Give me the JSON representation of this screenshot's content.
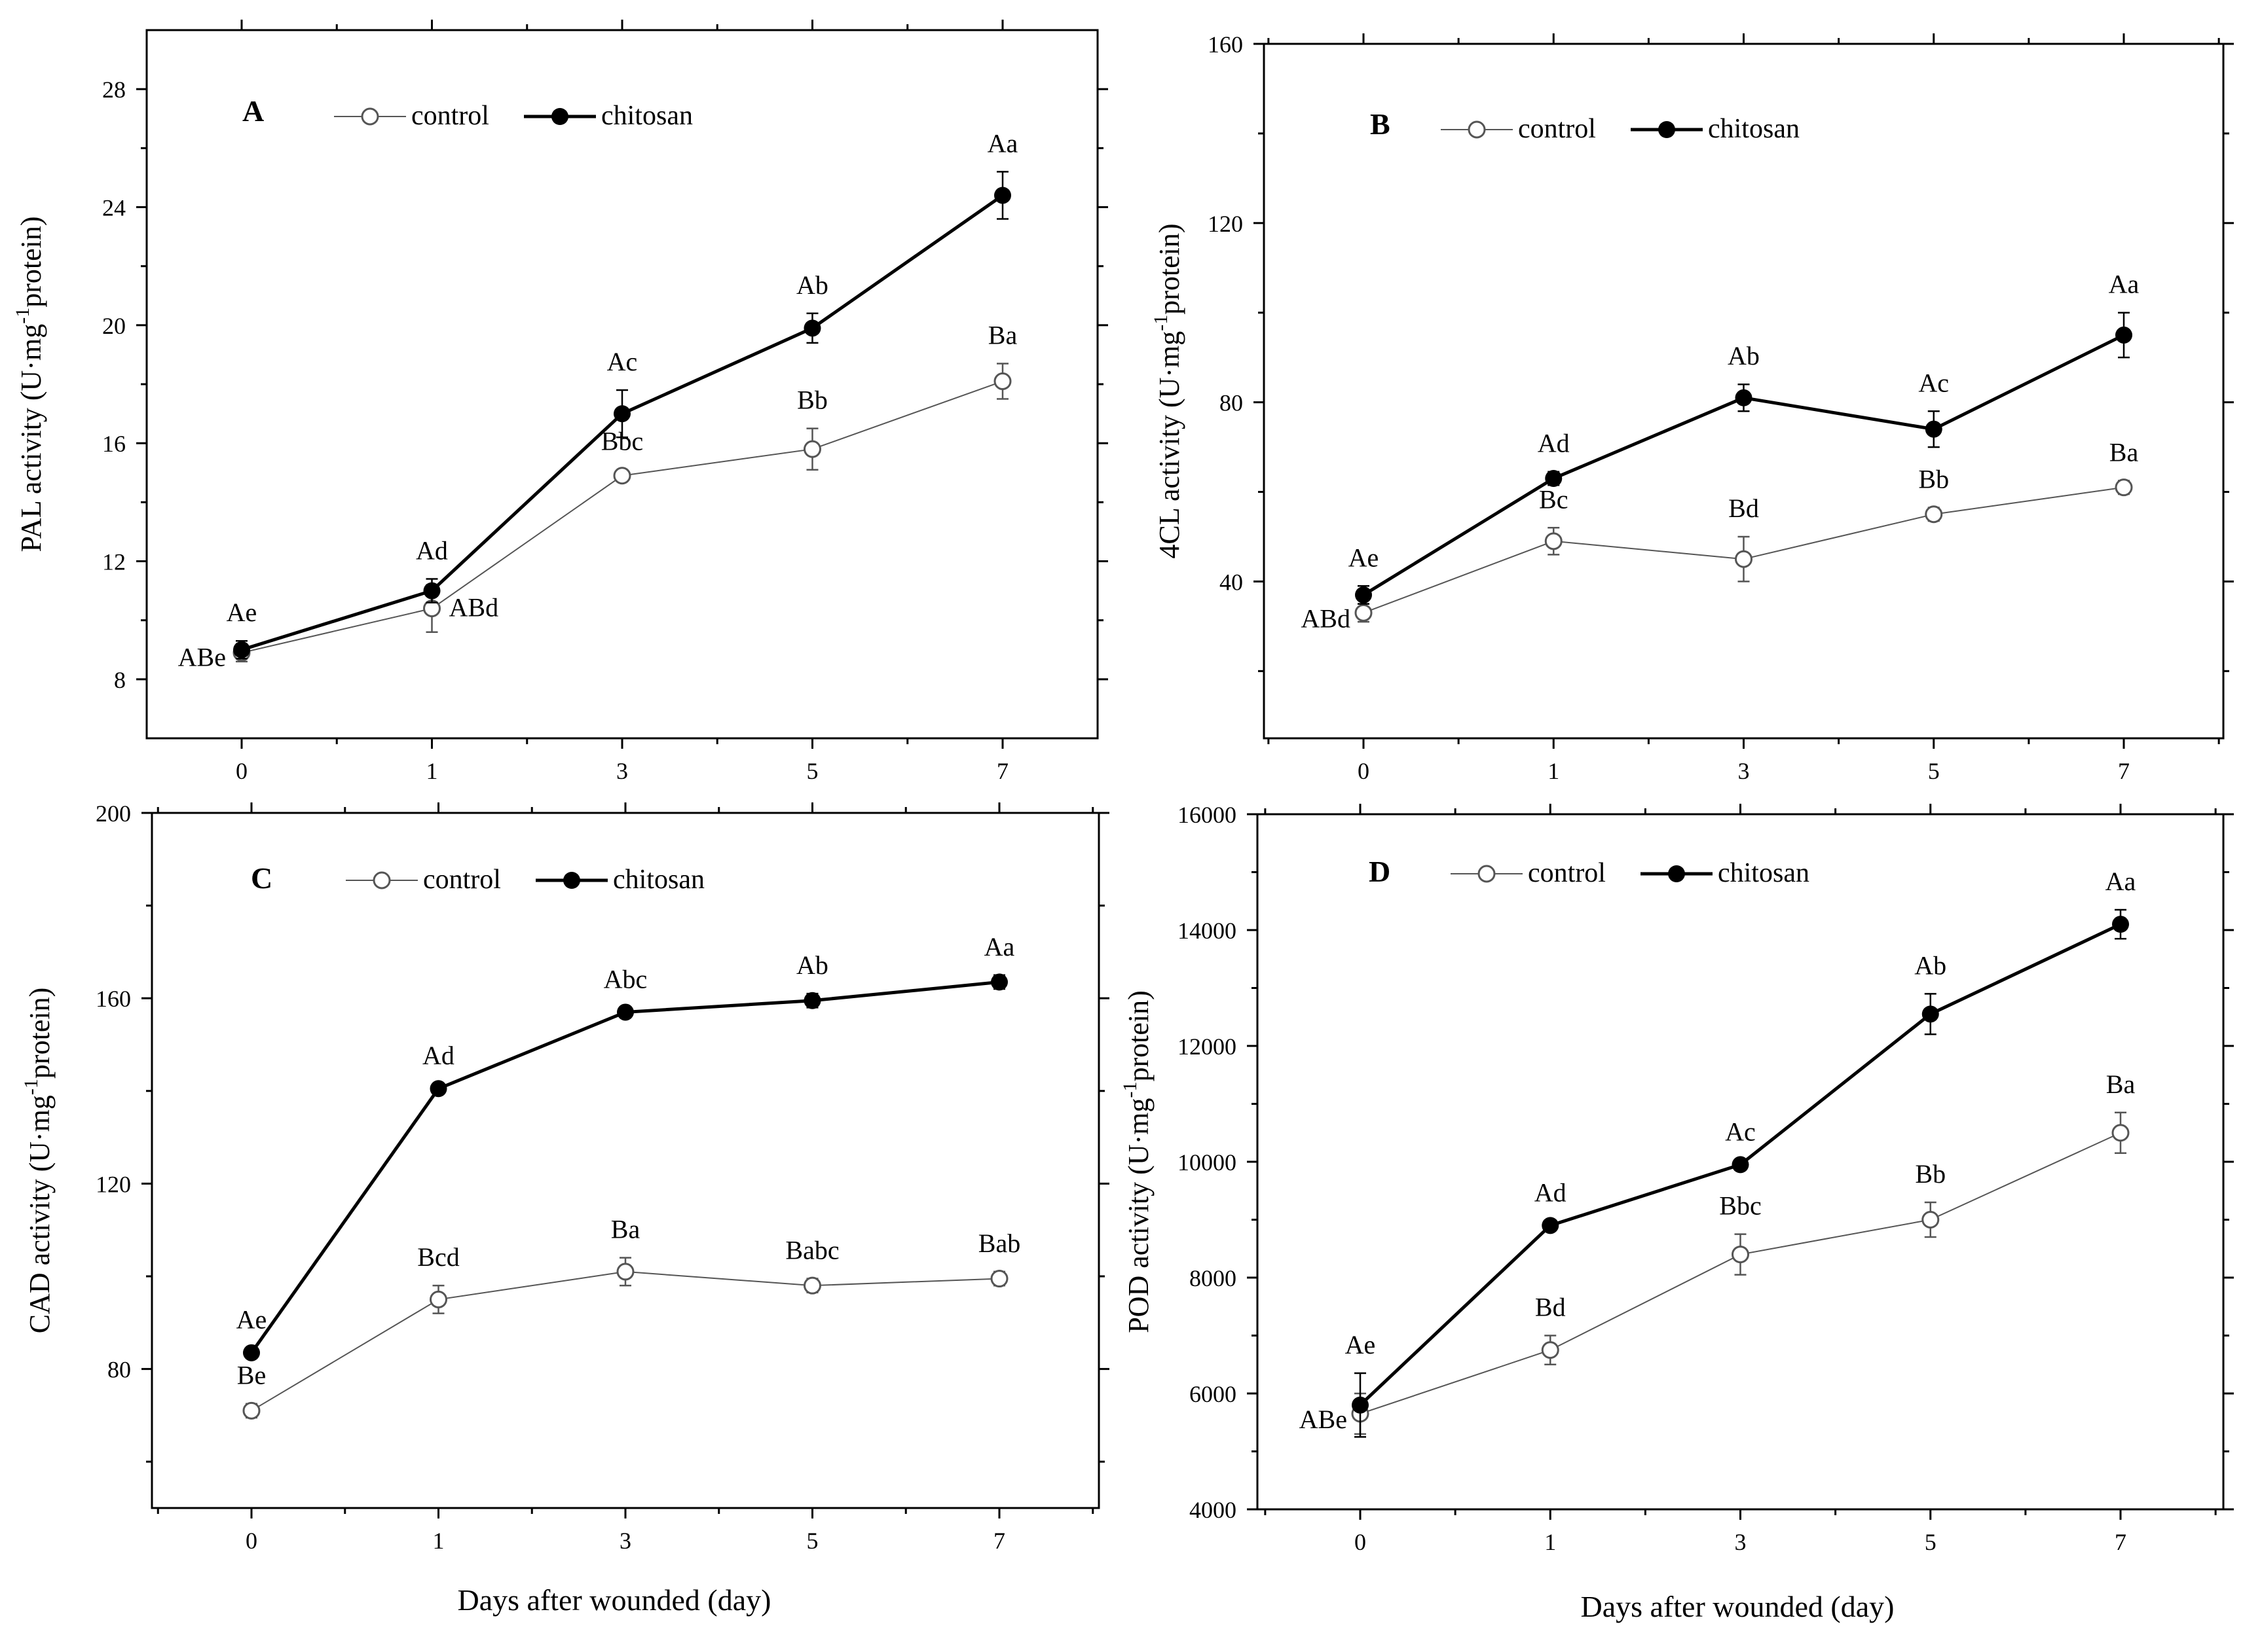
{
  "figure": {
    "shared_xlabel": "Days after wounded (day)"
  },
  "colors": {
    "axis": "#000000",
    "control": "#555555",
    "chitosan": "#000000"
  },
  "chart_data": [
    {
      "id": "A",
      "type": "line",
      "panel_label": "A",
      "title": "",
      "xlabel": "",
      "ylabel_prefix": "PAL activity (U·mg",
      "ylabel_sup": "-1",
      "ylabel_suffix": "protein)",
      "x": [
        "0",
        "1",
        "3",
        "5",
        "7"
      ],
      "ylim": [
        6,
        30
      ],
      "yticks": [
        "8",
        "12",
        "16",
        "20",
        "24",
        "28"
      ],
      "ytick_values": [
        8,
        12,
        16,
        20,
        24,
        28
      ],
      "legend": [
        "control",
        "chitosan"
      ],
      "series": [
        {
          "name": "control",
          "values": [
            8.9,
            10.4,
            14.9,
            15.8,
            18.1
          ],
          "errors": [
            0.3,
            0.8,
            0.2,
            0.7,
            0.6
          ],
          "labels": [
            "ABe",
            "ABd",
            "Bbc",
            "Bb",
            "Ba"
          ]
        },
        {
          "name": "chitosan",
          "values": [
            9.0,
            11.0,
            17.0,
            19.9,
            24.4
          ],
          "errors": [
            0.3,
            0.4,
            0.8,
            0.5,
            0.8
          ],
          "labels": [
            "Ae",
            "Ad",
            "Ac",
            "Ab",
            "Aa"
          ]
        }
      ]
    },
    {
      "id": "B",
      "type": "line",
      "panel_label": "B",
      "title": "",
      "xlabel": "",
      "ylabel_prefix": "4CL activity (U·mg",
      "ylabel_sup": "-1",
      "ylabel_suffix": "protein)",
      "x": [
        "0",
        "1",
        "3",
        "5",
        "7"
      ],
      "ylim": [
        5,
        160
      ],
      "yticks": [
        "40",
        "80",
        "120",
        "160"
      ],
      "ytick_values": [
        40,
        80,
        120,
        160
      ],
      "legend": [
        "control",
        "chitosan"
      ],
      "series": [
        {
          "name": "control",
          "values": [
            33,
            49,
            45,
            55,
            61
          ],
          "errors": [
            2,
            3,
            5,
            1.5,
            1.5
          ],
          "labels": [
            "ABd",
            "Bc",
            "Bd",
            "Bb",
            "Ba"
          ]
        },
        {
          "name": "chitosan",
          "values": [
            37,
            63,
            81,
            74,
            95
          ],
          "errors": [
            2,
            1.5,
            3,
            4,
            5
          ],
          "labels": [
            "Ae",
            "Ad",
            "Ab",
            "Ac",
            "Aa"
          ]
        }
      ]
    },
    {
      "id": "C",
      "type": "line",
      "panel_label": "C",
      "title": "",
      "xlabel": "",
      "ylabel_prefix": "CAD activity (U·mg",
      "ylabel_sup": "-1",
      "ylabel_suffix": "protein)",
      "x": [
        "0",
        "1",
        "3",
        "5",
        "7"
      ],
      "ylim": [
        50,
        200
      ],
      "yticks": [
        "80",
        "120",
        "160",
        "200"
      ],
      "ytick_values": [
        80,
        120,
        160,
        200
      ],
      "legend": [
        "control",
        "chitosan"
      ],
      "series": [
        {
          "name": "control",
          "values": [
            71,
            95,
            101,
            98,
            99.5
          ],
          "errors": [
            1.5,
            3,
            3,
            1.5,
            1.5
          ],
          "labels": [
            "Be",
            "Bcd",
            "Ba",
            "Babc",
            "Bab"
          ]
        },
        {
          "name": "chitosan",
          "values": [
            83.5,
            140.5,
            157,
            159.5,
            163.5
          ],
          "errors": [
            1,
            1,
            1,
            1.5,
            1.5
          ],
          "labels": [
            "Ae",
            "Ad",
            "Abc",
            "Ab",
            "Aa"
          ]
        }
      ]
    },
    {
      "id": "D",
      "type": "line",
      "panel_label": "D",
      "title": "",
      "xlabel": "",
      "ylabel_prefix": "POD activity (U·mg",
      "ylabel_sup": "-1",
      "ylabel_suffix": "protein)",
      "x": [
        "0",
        "1",
        "3",
        "5",
        "7"
      ],
      "ylim": [
        4000,
        16000
      ],
      "yticks": [
        "4000",
        "6000",
        "8000",
        "10000",
        "12000",
        "14000",
        "16000"
      ],
      "ytick_values": [
        4000,
        6000,
        8000,
        10000,
        12000,
        14000,
        16000
      ],
      "legend": [
        "control",
        "chitosan"
      ],
      "series": [
        {
          "name": "control",
          "values": [
            5650,
            6750,
            8400,
            9000,
            10500
          ],
          "errors": [
            350,
            250,
            350,
            300,
            350
          ],
          "labels": [
            "ABe",
            "Bd",
            "Bbc",
            "Bb",
            "Ba"
          ]
        },
        {
          "name": "chitosan",
          "values": [
            5800,
            8900,
            9950,
            12550,
            14100
          ],
          "errors": [
            550,
            80,
            80,
            350,
            250
          ],
          "labels": [
            "Ae",
            "Ad",
            "Ac",
            "Ab",
            "Aa"
          ]
        }
      ]
    }
  ]
}
